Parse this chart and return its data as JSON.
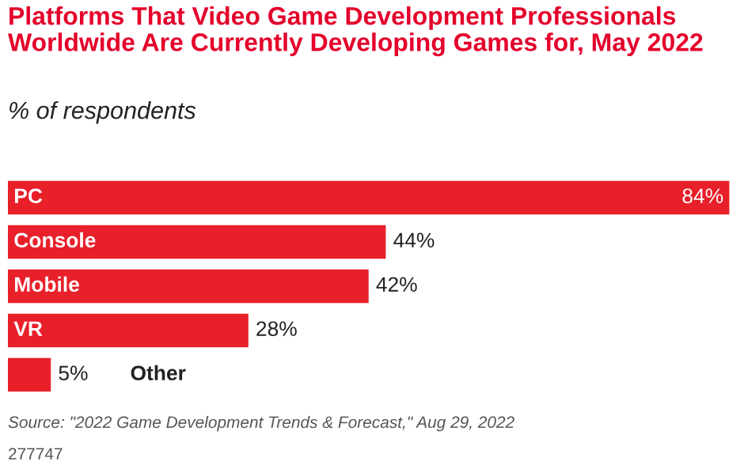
{
  "chart_data": {
    "type": "bar",
    "orientation": "horizontal",
    "title": "Platforms That Video Game Development Professionals Worldwide Are Currently Developing Games for, May 2022",
    "subtitle": "% of respondents",
    "categories": [
      "PC",
      "Console",
      "Mobile",
      "VR",
      "Other"
    ],
    "values": [
      84,
      44,
      42,
      28,
      5
    ],
    "color": "#e8202a",
    "value_labels": [
      "84%",
      "44%",
      "42%",
      "28%",
      "5%"
    ],
    "annotations": [
      "Source: \"2022 Game Development Trends & Forecast,\" Aug 29, 2022",
      "277747"
    ]
  }
}
